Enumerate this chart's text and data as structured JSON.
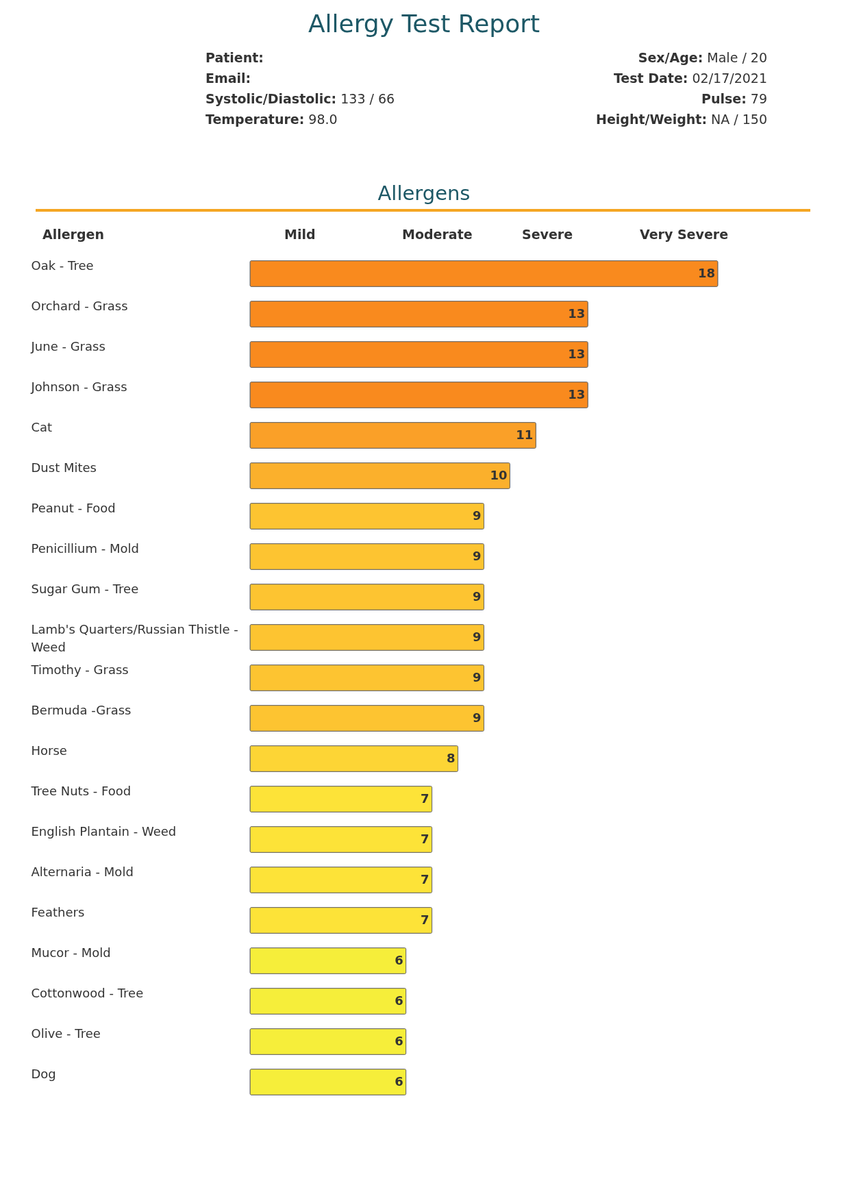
{
  "chart_data": {
    "type": "bar",
    "orientation": "horizontal",
    "title": "Allergy Test Report",
    "subtitle": "Allergens",
    "ylabel": "Allergen",
    "annotations": [
      "Patient:",
      "Sex/Age: Male / 20",
      "Email:",
      "Test Date: 02/17/2021",
      "Systolic/Diastolic: 133 / 66",
      "Pulse: 79",
      "Temperature: 98.0",
      "Height/Weight: NA / 150",
      "Mild",
      "Moderate",
      "Severe",
      "Very Severe"
    ],
    "categories": [
      "Oak - Tree",
      "Orchard - Grass",
      "June - Grass",
      "Johnson - Grass",
      "Cat",
      "Dust Mites",
      "Peanut - Food",
      "Penicillium - Mold",
      "Sugar Gum - Tree",
      "Lamb's Quarters/Russian Thistle - Weed",
      "Timothy - Grass",
      "Bermuda -Grass",
      "Horse",
      "Tree Nuts - Food",
      "English Plantain - Weed",
      "Alternaria - Mold",
      "Feathers",
      "Mucor - Mold",
      "Cottonwood - Tree",
      "Olive - Tree",
      "Dog"
    ],
    "values": [
      18,
      13,
      13,
      13,
      11,
      10,
      9,
      9,
      9,
      9,
      9,
      9,
      8,
      7,
      7,
      7,
      7,
      6,
      6,
      6,
      6
    ],
    "colors": [
      "#f98a1e",
      "#f98a1e",
      "#f98a1e",
      "#f98a1e",
      "#faa028",
      "#fbb02c",
      "#fdc431",
      "#fdc431",
      "#fdc431",
      "#fdc431",
      "#fdc431",
      "#fdc431",
      "#fdd535",
      "#fde338",
      "#fde338",
      "#fde338",
      "#fde338",
      "#f6ee3a",
      "#f6ee3a",
      "#f6ee3a",
      "#f6ee3a"
    ],
    "xlim": [
      0,
      18
    ],
    "data_labels": true,
    "tick_labels": "y"
  }
}
